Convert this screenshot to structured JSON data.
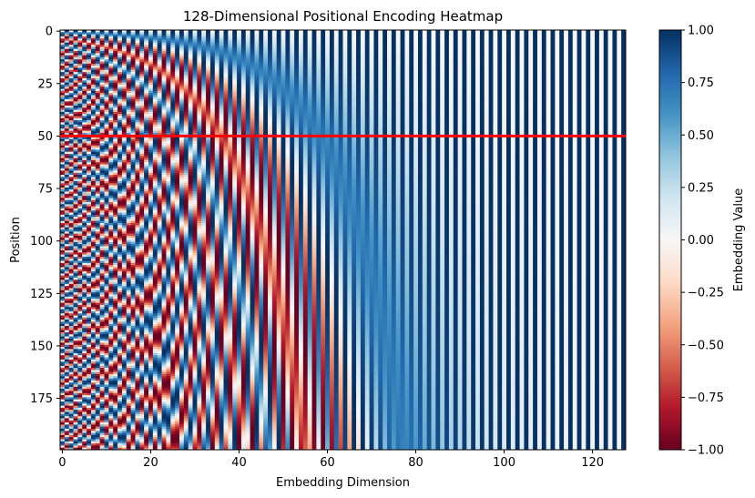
{
  "chart_data": {
    "type": "heatmap",
    "title": "128-Dimensional Positional Encoding Heatmap",
    "xlabel": "Embedding Dimension",
    "ylabel": "Position",
    "colorbar_label": "Embedding Value",
    "colormap": "RdBu",
    "positions": 200,
    "dimensions": 128,
    "value_range": [
      -1.0,
      1.0
    ],
    "xlim": [
      -0.5,
      127.5
    ],
    "ylim": [
      199.5,
      -0.5
    ],
    "x_ticks": [
      0,
      20,
      40,
      60,
      80,
      100,
      120
    ],
    "x_tick_labels": [
      "0",
      "20",
      "40",
      "60",
      "80",
      "100",
      "120"
    ],
    "y_ticks": [
      0,
      25,
      50,
      75,
      100,
      125,
      150,
      175
    ],
    "y_tick_labels": [
      "0",
      "25",
      "50",
      "75",
      "100",
      "125",
      "150",
      "175"
    ],
    "colorbar_ticks": [
      1.0,
      0.75,
      0.5,
      0.25,
      0.0,
      -0.25,
      -0.5,
      -0.75,
      -1.0
    ],
    "colorbar_tick_labels": [
      "1.00",
      "0.75",
      "0.50",
      "0.25",
      "0.00",
      "−0.25",
      "−0.50",
      "−0.75",
      "−1.00"
    ],
    "highlight_position": 50,
    "highlight_color": "#ff0000",
    "encoding": "sinusoidal: even dims sin(pos/10000^(i/128)), odd dims cos(pos/10000^((i-1)/128))"
  }
}
